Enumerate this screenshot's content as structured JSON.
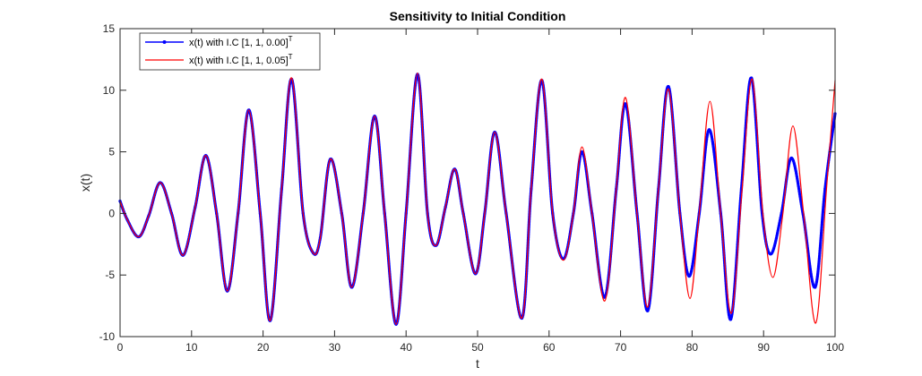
{
  "chart_data": {
    "type": "line",
    "title": "Sensitivity to Initial Condition",
    "xlabel": "t",
    "ylabel": "x(t)",
    "xlim": [
      0,
      100
    ],
    "ylim": [
      -10,
      15
    ],
    "xticks": [
      0,
      10,
      20,
      30,
      40,
      50,
      60,
      70,
      80,
      90,
      100
    ],
    "yticks": [
      -10,
      -5,
      0,
      5,
      10,
      15
    ],
    "grid": false,
    "legend_position": "top-left",
    "series": [
      {
        "name": "x(t) with I.C [1, 1, 0.00]",
        "name_superscript": "T",
        "color": "#0000ff",
        "marker": "point",
        "x": [
          0,
          1,
          2.6,
          4,
          5.6,
          7.2,
          8.8,
          10.5,
          12,
          13.5,
          15,
          16.5,
          18,
          19.6,
          21,
          22.6,
          24,
          25.6,
          27,
          28,
          29.4,
          31,
          32.4,
          34,
          35.6,
          37,
          38.6,
          40,
          41.6,
          43,
          44.2,
          45.5,
          46.8,
          48,
          49.7,
          51,
          52.4,
          54,
          56.2,
          57.5,
          59,
          60.5,
          62,
          63.4,
          64.6,
          66,
          67.8,
          69.4,
          70.7,
          72.3,
          73.8,
          75.3,
          76.7,
          78.3,
          79.6,
          81,
          82.4,
          84,
          85.4,
          86.9,
          88.3,
          89.8,
          91,
          92.5,
          93.9,
          95.5,
          97.2,
          98.6,
          100
        ],
        "y": [
          1,
          -0.5,
          -1.9,
          -0.2,
          2.5,
          0,
          -3.4,
          0.5,
          4.7,
          0,
          -6.3,
          0,
          8.4,
          0,
          -8.7,
          2,
          10.9,
          0,
          -3.2,
          -2,
          4.4,
          0,
          -6,
          0,
          7.9,
          0,
          -9,
          0,
          11.3,
          0,
          -2.6,
          0.5,
          3.6,
          0,
          -4.9,
          0,
          6.6,
          0,
          -8.5,
          2,
          10.8,
          0,
          -3.7,
          0,
          5,
          0,
          -6.8,
          2,
          8.9,
          0,
          -7.9,
          2,
          10.3,
          0,
          -5.1,
          0,
          6.8,
          0,
          -8.6,
          2,
          11,
          0,
          -3.3,
          0,
          4.5,
          0,
          -6,
          2,
          8.1
        ]
      },
      {
        "name": "x(t) with I.C [1, 1, 0.05]",
        "name_superscript": "T",
        "color": "#ff0000",
        "marker": "none",
        "x": [
          0,
          1,
          2.6,
          4,
          5.6,
          7.2,
          8.8,
          10.5,
          12,
          13.5,
          15,
          16.5,
          18,
          19.6,
          21,
          22.6,
          24,
          25.6,
          27,
          28,
          29.4,
          31,
          32.4,
          34,
          35.6,
          37,
          38.6,
          40,
          41.6,
          43,
          44.2,
          45.5,
          46.8,
          48,
          49.7,
          51,
          52.4,
          54,
          56.2,
          57.5,
          59,
          60.5,
          62,
          63.4,
          64.6,
          66,
          67.8,
          69.4,
          70.7,
          72.3,
          73.8,
          75.3,
          76.7,
          78.3,
          79.7,
          81,
          82.5,
          84,
          85.5,
          87,
          88.4,
          89.9,
          91.3,
          92.7,
          94.1,
          95.6,
          97.3,
          98.8,
          100
        ],
        "y": [
          1,
          -0.5,
          -1.9,
          -0.2,
          2.5,
          0,
          -3.4,
          0.5,
          4.7,
          0,
          -6.3,
          0,
          8.4,
          0,
          -8.7,
          2,
          11,
          0,
          -3.2,
          -2,
          4.4,
          0,
          -6,
          0,
          7.9,
          0,
          -9,
          0,
          11.4,
          0,
          -2.6,
          0.5,
          3.6,
          0,
          -4.9,
          0,
          6.6,
          0,
          -8.5,
          2,
          10.9,
          0,
          -3.8,
          0,
          5.4,
          0,
          -7.1,
          2,
          9.4,
          0,
          -7.6,
          2,
          10.1,
          0,
          -6.9,
          0,
          9.1,
          0,
          -8.1,
          2,
          10.9,
          0,
          -5.2,
          0,
          7.1,
          0,
          -8.9,
          2,
          10.8
        ]
      }
    ]
  }
}
